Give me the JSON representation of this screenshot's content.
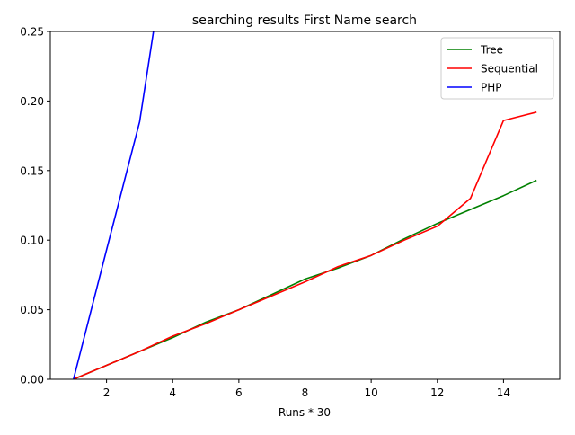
{
  "chart_data": {
    "type": "line",
    "title": "searching results First Name search",
    "xlabel": "Runs * 30",
    "ylabel": "",
    "xlim": [
      0.3,
      15.7
    ],
    "ylim": [
      0,
      0.25
    ],
    "xticks": [
      2,
      4,
      6,
      8,
      10,
      12,
      14
    ],
    "yticks": [
      0.0,
      0.05,
      0.1,
      0.15,
      0.2,
      0.25
    ],
    "xtick_labels": [
      "2",
      "4",
      "6",
      "8",
      "10",
      "12",
      "14"
    ],
    "ytick_labels": [
      "0.00",
      "0.05",
      "0.10",
      "0.15",
      "0.20",
      "0.25"
    ],
    "grid": false,
    "legend_position": "upper-right",
    "series": [
      {
        "name": "Tree",
        "color": "#008000",
        "x": [
          1,
          2,
          3,
          4,
          5,
          6,
          7,
          8,
          9,
          10,
          11,
          12,
          13,
          14,
          15
        ],
        "y": [
          0.0,
          0.01,
          0.02,
          0.03,
          0.041,
          0.05,
          0.061,
          0.072,
          0.08,
          0.089,
          0.101,
          0.112,
          0.122,
          0.132,
          0.143
        ]
      },
      {
        "name": "Sequential",
        "color": "#ff0000",
        "x": [
          1,
          2,
          3,
          4,
          5,
          6,
          7,
          8,
          9,
          10,
          11,
          12,
          13,
          14,
          15
        ],
        "y": [
          0.0,
          0.01,
          0.02,
          0.031,
          0.04,
          0.05,
          0.06,
          0.07,
          0.081,
          0.089,
          0.1,
          0.11,
          0.13,
          0.186,
          0.192
        ]
      },
      {
        "name": "PHP",
        "color": "#0000ff",
        "x": [
          1,
          2,
          3,
          4
        ],
        "y": [
          0.0,
          0.093,
          0.185,
          0.34
        ]
      }
    ]
  }
}
